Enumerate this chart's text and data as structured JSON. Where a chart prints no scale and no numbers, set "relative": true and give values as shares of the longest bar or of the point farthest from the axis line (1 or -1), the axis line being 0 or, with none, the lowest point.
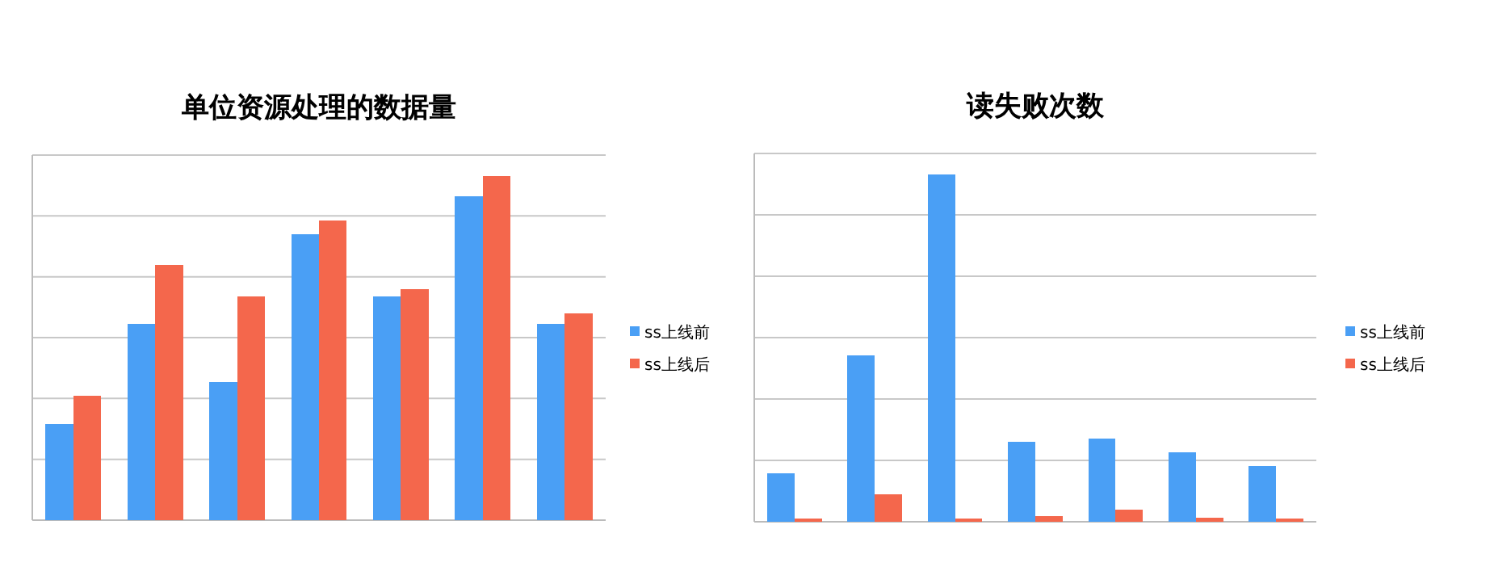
{
  "chart_data": [
    {
      "type": "bar",
      "title": "单位资源处理的数据量",
      "relative": true,
      "categories": [
        null,
        null,
        null,
        null,
        null,
        null,
        null
      ],
      "grid": "y",
      "legend": "right",
      "series": [
        {
          "name": "ss上线前",
          "color": "#4a9ff5",
          "values": [
            0.28,
            0.57,
            0.4,
            0.83,
            0.65,
            0.94,
            0.57
          ]
        },
        {
          "name": "ss上线后",
          "color": "#f4674c",
          "values": [
            0.36,
            0.74,
            0.65,
            0.87,
            0.67,
            1,
            0.6
          ]
        }
      ]
    },
    {
      "type": "bar",
      "title": "读失败次数",
      "relative": true,
      "categories": [
        null,
        null,
        null,
        null,
        null,
        null,
        null
      ],
      "grid": "y",
      "legend": "right",
      "series": [
        {
          "name": "ss上线前",
          "color": "#4a9ff5",
          "values": [
            0.14,
            0.48,
            1,
            0.23,
            0.24,
            0.2,
            0.16
          ]
        },
        {
          "name": "ss上线后",
          "color": "#f4674c",
          "values": [
            0.01,
            0.08,
            0.01,
            0.016,
            0.034,
            0.012,
            0.01
          ]
        }
      ]
    }
  ]
}
